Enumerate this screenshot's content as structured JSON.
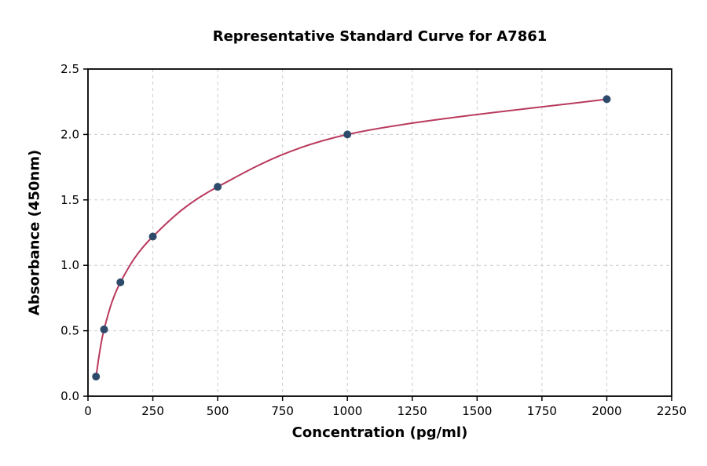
{
  "chart_data": {
    "type": "scatter",
    "title": "Representative Standard Curve for A7861",
    "xlabel": "Concentration (pg/ml)",
    "ylabel": "Absorbance (450nm)",
    "xlim": [
      0,
      2250
    ],
    "ylim": [
      0.0,
      2.5
    ],
    "xticks": [
      0,
      250,
      500,
      750,
      1000,
      1250,
      1500,
      1750,
      2000,
      2250
    ],
    "xtick_labels": [
      "0",
      "250",
      "500",
      "750",
      "1000",
      "1250",
      "1500",
      "1750",
      "2000",
      "2250"
    ],
    "yticks": [
      0.0,
      0.5,
      1.0,
      1.5,
      2.0,
      2.5
    ],
    "ytick_labels": [
      "0.0",
      "0.5",
      "1.0",
      "1.5",
      "2.0",
      "2.5"
    ],
    "grid": true,
    "legend": "none",
    "points": [
      {
        "x": 31,
        "y": 0.15
      },
      {
        "x": 62,
        "y": 0.51
      },
      {
        "x": 125,
        "y": 0.87
      },
      {
        "x": 250,
        "y": 1.22
      },
      {
        "x": 500,
        "y": 1.6
      },
      {
        "x": 1000,
        "y": 2.0
      },
      {
        "x": 2000,
        "y": 2.27
      }
    ],
    "colors": {
      "point": "#2e4a6b",
      "curve": "#b93a5e",
      "grid": "#cccccc",
      "axis": "#000000"
    }
  }
}
